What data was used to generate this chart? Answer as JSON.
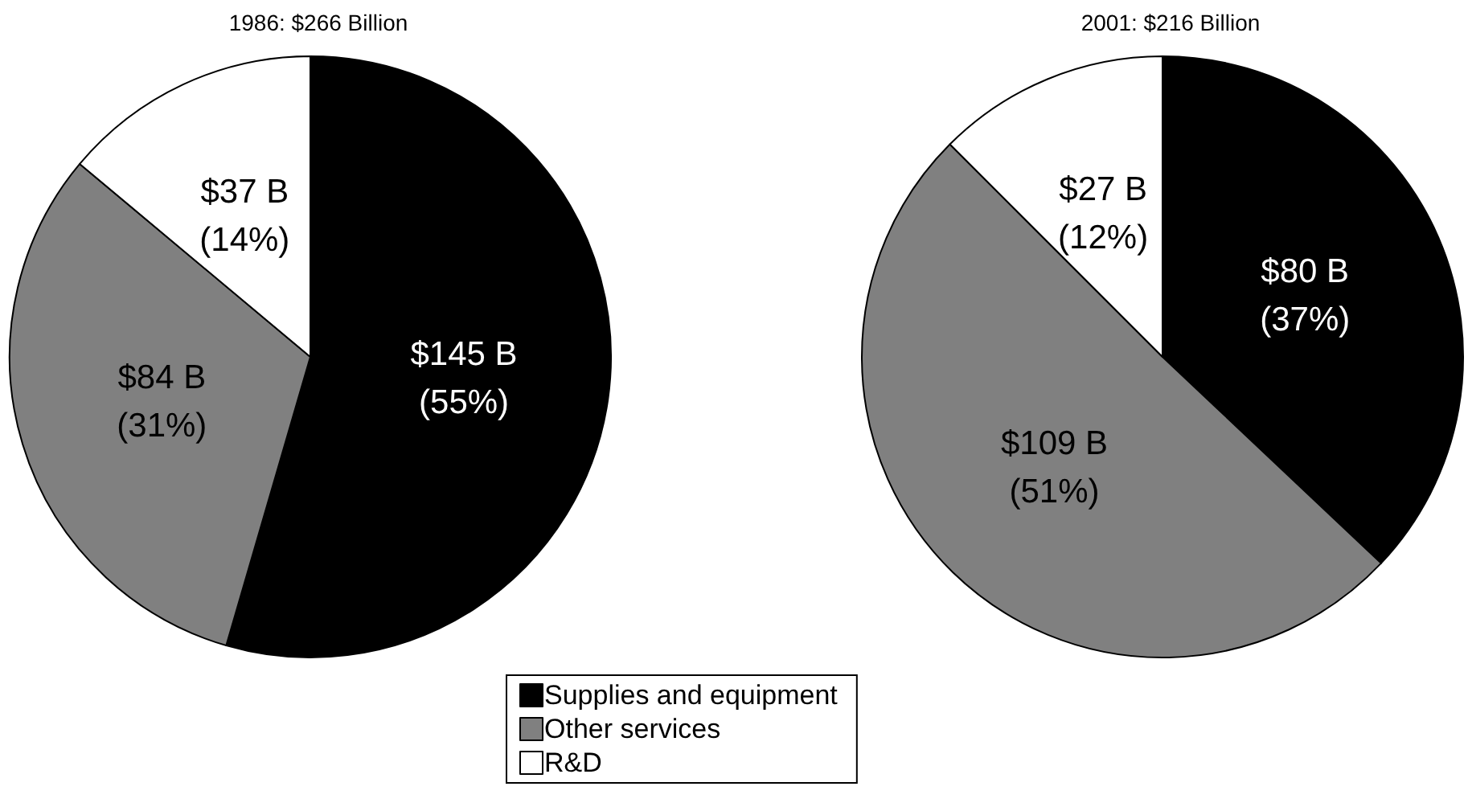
{
  "chart_data": {
    "type": "pie",
    "categories": [
      "Supplies and equipment",
      "Other services",
      "R&D"
    ],
    "colors": [
      "#000000",
      "#808080",
      "#ffffff"
    ],
    "legend": "bottom",
    "series": [
      {
        "name": "1986: $266 Billion",
        "values": [
          145,
          84,
          37
        ],
        "value_labels": [
          "$145 B\n(55%)",
          "$84 B\n(31%)",
          "$37 B\n(14%)"
        ]
      },
      {
        "name": "2001: $216 Billion",
        "values": [
          80,
          109,
          27
        ],
        "value_labels": [
          "$80 B\n(37%)",
          "$109 B\n(51%)",
          "$27 B\n(12%)"
        ]
      }
    ]
  }
}
